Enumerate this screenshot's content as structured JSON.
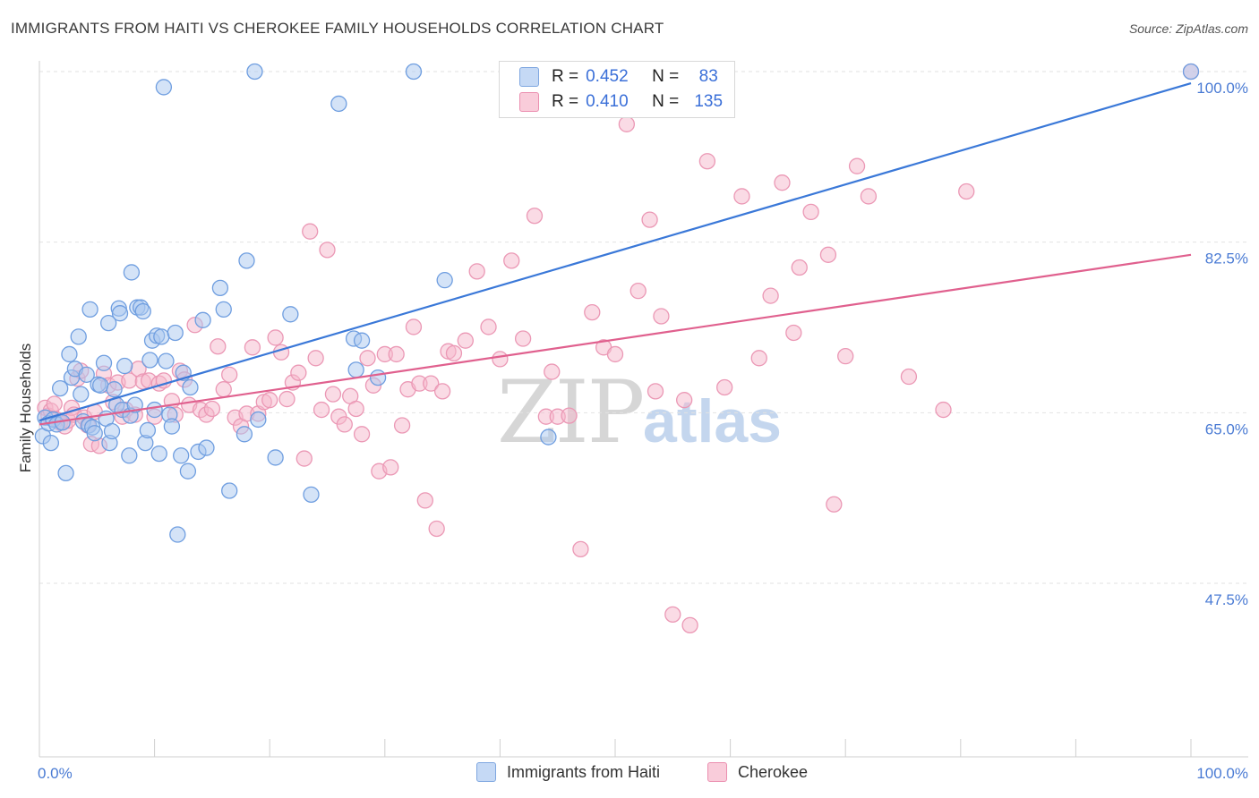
{
  "title": "IMMIGRANTS FROM HAITI VS CHEROKEE FAMILY HOUSEHOLDS CORRELATION CHART",
  "source": "Source: ZipAtlas.com",
  "watermark": {
    "zip": "ZIP",
    "atlas": "atlas"
  },
  "legend": {
    "rows": [
      {
        "r_label": "R =",
        "r_value": "0.452",
        "n_label": "N =",
        "n_value": "83",
        "color": "#aac8f0"
      },
      {
        "r_label": "R =",
        "r_value": "0.410",
        "n_label": "N =",
        "n_value": "135",
        "color": "#f5b8cc"
      }
    ]
  },
  "bottom_legend": [
    {
      "label": "Immigrants from Haiti",
      "color": "#aac8f0"
    },
    {
      "label": "Cherokee",
      "color": "#f5b8cc"
    }
  ],
  "chart_data": {
    "type": "scatter",
    "title": "IMMIGRANTS FROM HAITI VS CHEROKEE FAMILY HOUSEHOLDS CORRELATION CHART",
    "xlabel": "",
    "ylabel": "Family Households",
    "xlim": [
      0,
      100
    ],
    "ylim": [
      31,
      100
    ],
    "x_tick_labels": [
      "0.0%",
      "100.0%"
    ],
    "y_ticks": [
      47.5,
      65.0,
      82.5,
      100.0
    ],
    "y_tick_labels": [
      "47.5%",
      "65.0%",
      "82.5%",
      "100.0%"
    ],
    "grid": true,
    "legend_position": "top-center",
    "series": [
      {
        "name": "Immigrants from Haiti",
        "color": "#3a78d8",
        "fill": "#aac8f0",
        "trend": {
          "x0": 0,
          "y0": 64.2,
          "x1": 100,
          "y1": 98.8
        },
        "points": [
          [
            0.3,
            62.6
          ],
          [
            0.5,
            64.5
          ],
          [
            0.8,
            63.9
          ],
          [
            1.0,
            61.9
          ],
          [
            1.2,
            64.3
          ],
          [
            1.5,
            63.8
          ],
          [
            1.8,
            67.5
          ],
          [
            2.0,
            64.0
          ],
          [
            2.3,
            58.8
          ],
          [
            2.6,
            71.0
          ],
          [
            2.8,
            68.6
          ],
          [
            3.1,
            69.5
          ],
          [
            3.4,
            72.8
          ],
          [
            3.6,
            66.9
          ],
          [
            3.8,
            64.1
          ],
          [
            4.1,
            68.9
          ],
          [
            4.3,
            63.7
          ],
          [
            4.4,
            75.6
          ],
          [
            4.6,
            63.5
          ],
          [
            4.8,
            62.9
          ],
          [
            5.1,
            67.9
          ],
          [
            5.3,
            67.8
          ],
          [
            5.6,
            70.1
          ],
          [
            5.8,
            64.4
          ],
          [
            6.0,
            74.2
          ],
          [
            6.1,
            61.9
          ],
          [
            6.3,
            63.1
          ],
          [
            6.5,
            67.4
          ],
          [
            6.7,
            65.8
          ],
          [
            6.9,
            75.7
          ],
          [
            7.0,
            75.2
          ],
          [
            7.2,
            65.3
          ],
          [
            7.4,
            69.8
          ],
          [
            7.8,
            60.6
          ],
          [
            7.9,
            64.7
          ],
          [
            8.0,
            79.4
          ],
          [
            8.3,
            65.8
          ],
          [
            8.5,
            75.8
          ],
          [
            8.8,
            75.8
          ],
          [
            9.0,
            75.4
          ],
          [
            9.2,
            61.9
          ],
          [
            9.4,
            63.2
          ],
          [
            9.6,
            70.4
          ],
          [
            9.8,
            72.4
          ],
          [
            10.0,
            65.3
          ],
          [
            10.2,
            72.9
          ],
          [
            10.4,
            60.8
          ],
          [
            10.6,
            72.8
          ],
          [
            10.8,
            98.4
          ],
          [
            11.0,
            70.3
          ],
          [
            11.3,
            64.8
          ],
          [
            11.5,
            63.6
          ],
          [
            11.8,
            73.2
          ],
          [
            12.0,
            52.5
          ],
          [
            12.3,
            60.6
          ],
          [
            12.5,
            69.1
          ],
          [
            12.9,
            59.0
          ],
          [
            13.1,
            67.6
          ],
          [
            13.8,
            61.0
          ],
          [
            14.2,
            74.5
          ],
          [
            14.5,
            61.4
          ],
          [
            15.7,
            77.8
          ],
          [
            16.0,
            75.6
          ],
          [
            16.5,
            57.0
          ],
          [
            17.8,
            62.8
          ],
          [
            18.0,
            80.6
          ],
          [
            18.7,
            100.0
          ],
          [
            19.0,
            64.3
          ],
          [
            20.5,
            60.4
          ],
          [
            21.8,
            75.1
          ],
          [
            23.6,
            56.6
          ],
          [
            26.0,
            96.7
          ],
          [
            27.3,
            72.6
          ],
          [
            27.5,
            69.4
          ],
          [
            28.0,
            72.4
          ],
          [
            29.4,
            68.6
          ],
          [
            32.5,
            100.0
          ],
          [
            35.2,
            78.6
          ],
          [
            44.2,
            62.5
          ],
          [
            100.0,
            100.0
          ]
        ]
      },
      {
        "name": "Cherokee",
        "color": "#e0608e",
        "fill": "#f5b8cc",
        "trend": {
          "x0": 0,
          "y0": 63.8,
          "x1": 100,
          "y1": 81.2
        },
        "points": [
          [
            0.5,
            65.5
          ],
          [
            0.8,
            64.7
          ],
          [
            1.0,
            65.2
          ],
          [
            1.3,
            65.9
          ],
          [
            1.5,
            64.3
          ],
          [
            1.8,
            64.0
          ],
          [
            2.2,
            63.6
          ],
          [
            2.5,
            64.2
          ],
          [
            2.8,
            65.5
          ],
          [
            3.0,
            64.8
          ],
          [
            3.3,
            68.5
          ],
          [
            3.6,
            69.3
          ],
          [
            3.9,
            64.5
          ],
          [
            4.2,
            63.7
          ],
          [
            4.5,
            61.8
          ],
          [
            4.8,
            65.1
          ],
          [
            5.2,
            61.6
          ],
          [
            5.6,
            69.0
          ],
          [
            6.0,
            67.8
          ],
          [
            6.4,
            66.1
          ],
          [
            6.8,
            68.1
          ],
          [
            7.2,
            64.6
          ],
          [
            7.5,
            65.3
          ],
          [
            7.8,
            68.3
          ],
          [
            8.3,
            64.8
          ],
          [
            8.6,
            69.5
          ],
          [
            9.0,
            68.2
          ],
          [
            9.5,
            68.3
          ],
          [
            10.0,
            64.6
          ],
          [
            10.4,
            68.0
          ],
          [
            10.8,
            68.3
          ],
          [
            11.5,
            66.2
          ],
          [
            11.8,
            64.8
          ],
          [
            12.2,
            69.3
          ],
          [
            12.6,
            68.4
          ],
          [
            13.0,
            65.8
          ],
          [
            13.5,
            74.0
          ],
          [
            14.0,
            65.3
          ],
          [
            14.5,
            64.8
          ],
          [
            15.0,
            65.4
          ],
          [
            15.5,
            71.8
          ],
          [
            16.0,
            67.4
          ],
          [
            16.5,
            68.9
          ],
          [
            17.0,
            64.5
          ],
          [
            17.5,
            63.6
          ],
          [
            18.0,
            64.9
          ],
          [
            18.5,
            71.7
          ],
          [
            19.0,
            64.9
          ],
          [
            19.5,
            66.1
          ],
          [
            20.0,
            66.3
          ],
          [
            20.5,
            72.7
          ],
          [
            21.0,
            71.2
          ],
          [
            21.5,
            66.4
          ],
          [
            22.0,
            68.1
          ],
          [
            22.5,
            69.1
          ],
          [
            23.0,
            60.3
          ],
          [
            23.5,
            83.6
          ],
          [
            24.0,
            70.6
          ],
          [
            24.5,
            65.3
          ],
          [
            25.0,
            81.7
          ],
          [
            25.5,
            66.9
          ],
          [
            26.0,
            64.6
          ],
          [
            26.5,
            63.8
          ],
          [
            27.0,
            66.7
          ],
          [
            27.5,
            65.4
          ],
          [
            28.0,
            62.8
          ],
          [
            28.5,
            70.6
          ],
          [
            29.0,
            67.8
          ],
          [
            29.5,
            59.0
          ],
          [
            30.0,
            71.0
          ],
          [
            30.5,
            59.4
          ],
          [
            31.0,
            71.0
          ],
          [
            31.5,
            63.7
          ],
          [
            32.0,
            67.4
          ],
          [
            32.5,
            73.8
          ],
          [
            33.0,
            68.0
          ],
          [
            33.5,
            56.0
          ],
          [
            34.0,
            68.0
          ],
          [
            34.5,
            53.1
          ],
          [
            35.0,
            67.2
          ],
          [
            35.5,
            71.3
          ],
          [
            36.0,
            71.1
          ],
          [
            37.0,
            72.4
          ],
          [
            38.0,
            79.5
          ],
          [
            39.0,
            73.8
          ],
          [
            40.0,
            70.5
          ],
          [
            41.0,
            80.6
          ],
          [
            42.0,
            72.6
          ],
          [
            43.0,
            85.2
          ],
          [
            44.0,
            64.6
          ],
          [
            44.5,
            69.2
          ],
          [
            45.0,
            64.6
          ],
          [
            46.0,
            64.7
          ],
          [
            47.0,
            51.0
          ],
          [
            48.0,
            75.3
          ],
          [
            49.0,
            71.7
          ],
          [
            50.0,
            71.0
          ],
          [
            51.0,
            94.6
          ],
          [
            52.0,
            77.5
          ],
          [
            53.0,
            84.8
          ],
          [
            53.5,
            67.2
          ],
          [
            54.0,
            74.9
          ],
          [
            55.0,
            44.3
          ],
          [
            56.0,
            66.3
          ],
          [
            56.5,
            43.2
          ],
          [
            58.0,
            90.8
          ],
          [
            59.5,
            67.6
          ],
          [
            61.0,
            87.2
          ],
          [
            62.5,
            70.6
          ],
          [
            63.5,
            77.0
          ],
          [
            64.5,
            88.6
          ],
          [
            65.5,
            73.2
          ],
          [
            66.0,
            79.9
          ],
          [
            67.0,
            85.6
          ],
          [
            68.5,
            81.2
          ],
          [
            69.0,
            55.6
          ],
          [
            70.0,
            70.8
          ],
          [
            71.0,
            90.3
          ],
          [
            72.0,
            87.2
          ],
          [
            75.5,
            68.7
          ],
          [
            78.5,
            65.3
          ],
          [
            80.5,
            87.7
          ],
          [
            100.0,
            100.0
          ]
        ]
      }
    ]
  }
}
